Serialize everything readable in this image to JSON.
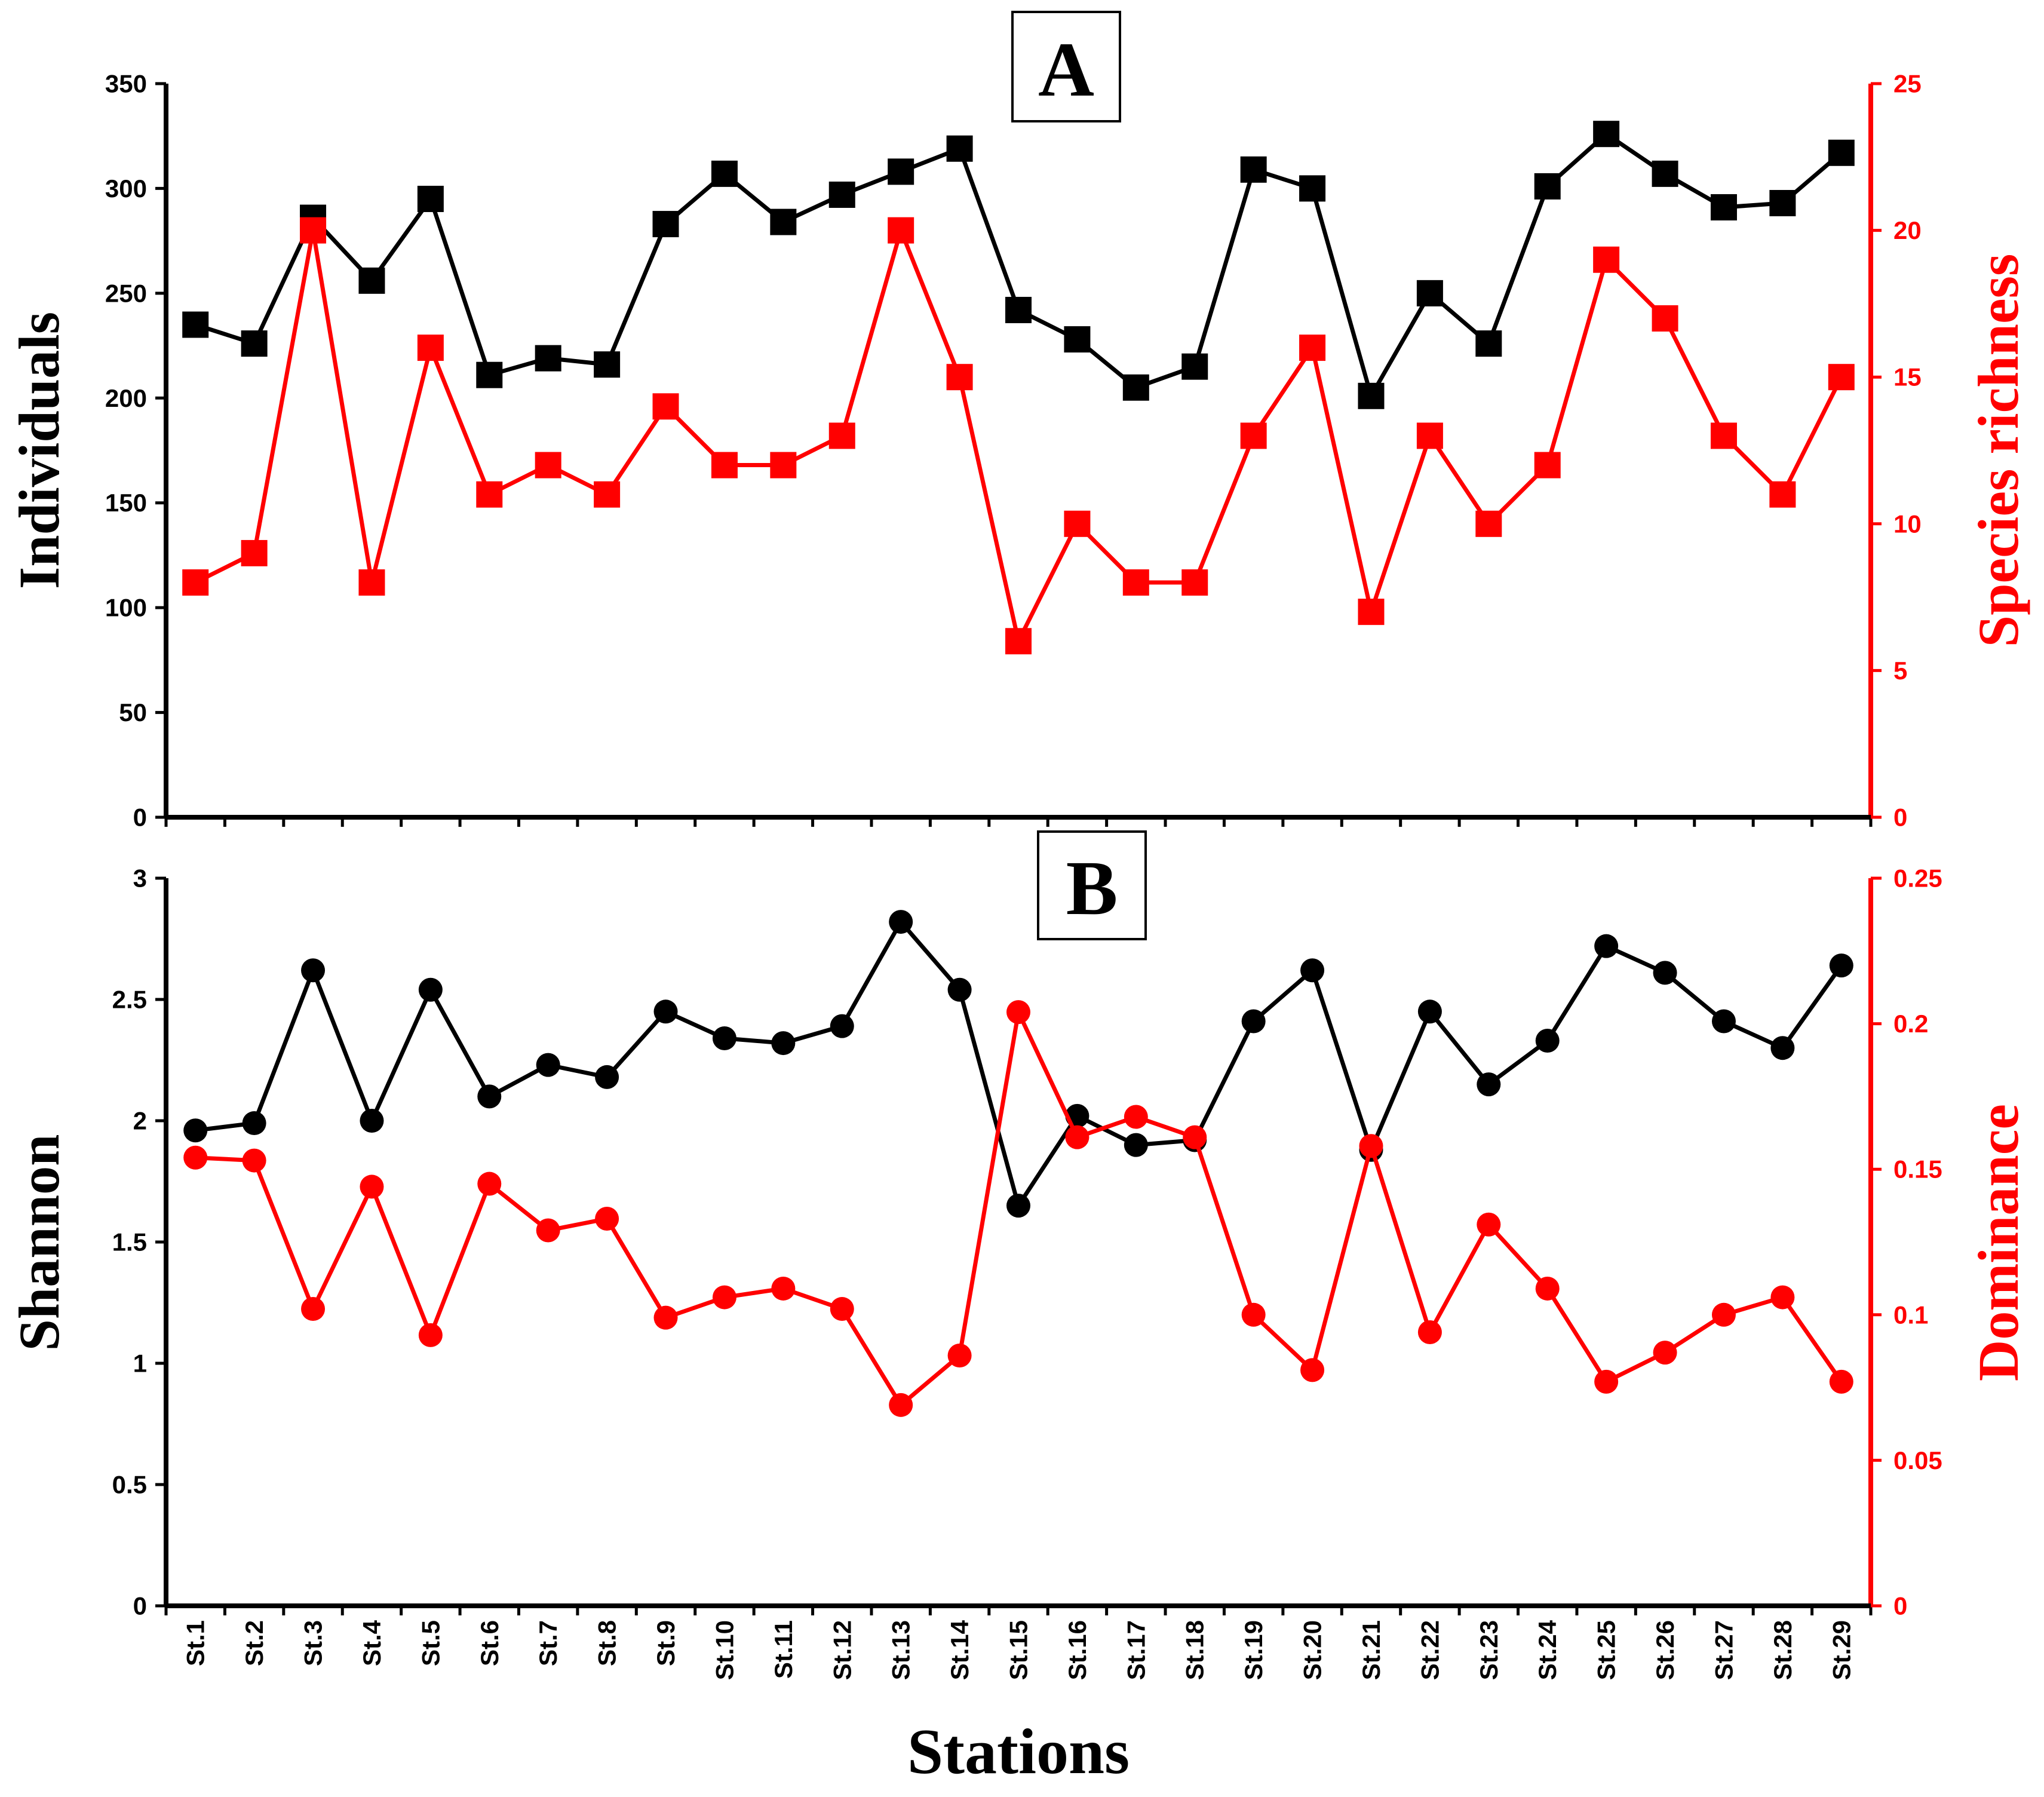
{
  "colors": {
    "black": "#000000",
    "red": "#ff0000"
  },
  "chart_data": [
    {
      "panel": "A",
      "title": "A",
      "type": "line",
      "categories": [
        "St.1",
        "St.2",
        "St.3",
        "St.4",
        "St.5",
        "St.6",
        "St.7",
        "St.8",
        "St.9",
        "St.10",
        "St.11",
        "St.12",
        "St.13",
        "St.14",
        "St.15",
        "St.16",
        "St.17",
        "St.18",
        "St.19",
        "St.20",
        "St.21",
        "St.22",
        "St.23",
        "St.24",
        "St.25",
        "St.26",
        "St.27",
        "St.28",
        "St.29"
      ],
      "left_axis": {
        "label": "Individuals",
        "ylim": [
          0,
          350
        ],
        "ticks": [
          "0",
          "50",
          "100",
          "150",
          "200",
          "250",
          "300",
          "350"
        ]
      },
      "right_axis": {
        "label": "Species richness",
        "ylim": [
          0,
          25
        ],
        "ticks": [
          "0",
          "5",
          "10",
          "15",
          "20",
          "25"
        ]
      },
      "series": [
        {
          "name": "Individuals",
          "axis": "left",
          "color": "#000000",
          "marker": "square",
          "values": [
            235,
            226,
            286,
            256,
            295,
            211,
            219,
            216,
            283,
            307,
            284,
            297,
            308,
            319,
            242,
            228,
            205,
            215,
            309,
            300,
            201,
            250,
            226,
            301,
            326,
            307,
            291,
            293,
            317
          ]
        },
        {
          "name": "Species richness",
          "axis": "right",
          "color": "#ff0000",
          "marker": "square",
          "values": [
            8,
            9,
            20,
            8,
            16,
            11,
            12,
            11,
            14,
            12,
            12,
            13,
            20,
            15,
            6,
            10,
            8,
            8,
            13,
            16,
            7,
            13,
            10,
            12,
            19,
            17,
            13,
            11,
            15
          ]
        }
      ]
    },
    {
      "panel": "B",
      "title": "B",
      "type": "line",
      "categories": [
        "St.1",
        "St.2",
        "St.3",
        "St.4",
        "St.5",
        "St.6",
        "St.7",
        "St.8",
        "St.9",
        "St.10",
        "St.11",
        "St.12",
        "St.13",
        "St.14",
        "St.15",
        "St.16",
        "St.17",
        "St.18",
        "St.19",
        "St.20",
        "St.21",
        "St.22",
        "St.23",
        "St.24",
        "St.25",
        "St.26",
        "St.27",
        "St.28",
        "St.29"
      ],
      "xlabel": "Stations",
      "left_axis": {
        "label": "Shannon",
        "ylim": [
          0,
          3
        ],
        "ticks": [
          "0",
          "0.5",
          "1",
          "1.5",
          "2",
          "2.5",
          "3"
        ]
      },
      "right_axis": {
        "label": "Dominance",
        "ylim": [
          0,
          0.25
        ],
        "ticks": [
          "0",
          "0.05",
          "0.1",
          "0.15",
          "0.2",
          "0.25"
        ]
      },
      "series": [
        {
          "name": "Shannon",
          "axis": "left",
          "color": "#000000",
          "marker": "circle",
          "values": [
            1.96,
            1.99,
            2.62,
            2.0,
            2.54,
            2.1,
            2.23,
            2.18,
            2.45,
            2.34,
            2.32,
            2.39,
            2.82,
            2.54,
            1.65,
            2.02,
            1.9,
            1.92,
            2.41,
            2.62,
            1.88,
            2.45,
            2.15,
            2.33,
            2.72,
            2.61,
            2.41,
            2.3,
            2.64
          ]
        },
        {
          "name": "Dominance",
          "axis": "right",
          "color": "#ff0000",
          "marker": "circle",
          "values": [
            0.154,
            0.153,
            0.102,
            0.144,
            0.093,
            0.145,
            0.129,
            0.133,
            0.099,
            0.106,
            0.109,
            0.102,
            0.069,
            0.086,
            0.204,
            0.161,
            0.168,
            0.161,
            0.1,
            0.081,
            0.158,
            0.094,
            0.131,
            0.109,
            0.077,
            0.087,
            0.1,
            0.106,
            0.077
          ]
        }
      ]
    }
  ]
}
